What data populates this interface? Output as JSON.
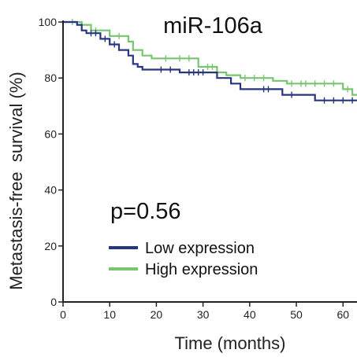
{
  "chart_data": {
    "type": "line",
    "title": "miR-106a",
    "annotation": "p=0.56",
    "xlabel": "Time (months)",
    "ylabel": "Metastasis-free  survival (%)",
    "xlim": [
      0,
      63
    ],
    "ylim": [
      0,
      100
    ],
    "xticks": [
      0,
      10,
      20,
      30,
      40,
      50,
      60
    ],
    "yticks": [
      0,
      20,
      40,
      60,
      80,
      100
    ],
    "grid": false,
    "legend_position": "bottom-center",
    "series": [
      {
        "name": "Low expression",
        "color": "#27367f",
        "steps": [
          [
            0,
            100
          ],
          [
            3,
            99
          ],
          [
            4,
            97
          ],
          [
            5,
            96
          ],
          [
            8,
            94
          ],
          [
            10,
            92
          ],
          [
            12,
            90
          ],
          [
            14,
            88
          ],
          [
            15,
            85
          ],
          [
            16,
            84
          ],
          [
            17,
            83
          ],
          [
            24,
            83
          ],
          [
            25,
            82
          ],
          [
            31,
            82
          ],
          [
            33,
            80
          ],
          [
            36,
            78
          ],
          [
            38,
            76
          ],
          [
            46,
            76
          ],
          [
            47,
            74
          ],
          [
            53,
            74
          ],
          [
            54,
            72
          ],
          [
            63,
            72
          ]
        ],
        "censor_marks": [
          6,
          7,
          9,
          11,
          21,
          23,
          27,
          28,
          29,
          30,
          43,
          44,
          49,
          56,
          58,
          60,
          62
        ]
      },
      {
        "name": "High expression",
        "color": "#77c56f",
        "steps": [
          [
            0,
            100
          ],
          [
            4,
            99
          ],
          [
            6,
            97
          ],
          [
            10,
            95
          ],
          [
            14,
            93
          ],
          [
            15,
            90
          ],
          [
            17,
            88
          ],
          [
            19,
            87
          ],
          [
            28,
            87
          ],
          [
            29,
            84
          ],
          [
            33,
            82
          ],
          [
            35,
            81
          ],
          [
            38,
            80
          ],
          [
            44,
            80
          ],
          [
            45,
            79
          ],
          [
            48,
            78
          ],
          [
            59,
            78
          ],
          [
            60,
            76
          ],
          [
            62,
            74
          ],
          [
            63,
            74
          ]
        ],
        "censor_marks": [
          2,
          7,
          12,
          22,
          25,
          27,
          31,
          32,
          39,
          41,
          43,
          49,
          51,
          52,
          54,
          56,
          58,
          61
        ]
      }
    ]
  }
}
